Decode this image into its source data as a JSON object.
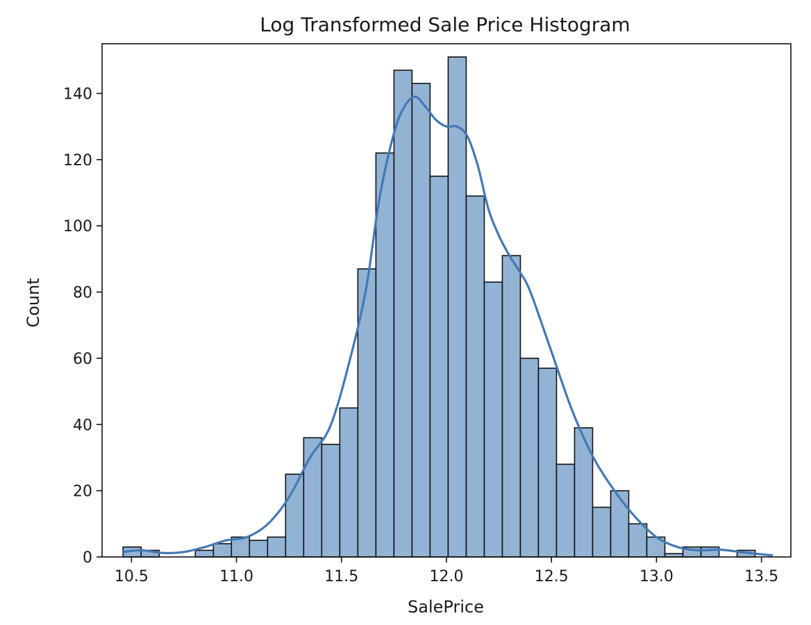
{
  "chart_data": {
    "type": "bar",
    "title": "Log Transformed Sale Price Histogram",
    "xlabel": "SalePrice",
    "ylabel": "Count",
    "xlim": [
      10.36,
      13.64
    ],
    "ylim": [
      0,
      155
    ],
    "xticks": [
      10.5,
      11.0,
      11.5,
      12.0,
      12.5,
      13.0,
      13.5
    ],
    "xtick_labels": [
      "10.5",
      "11.0",
      "11.5",
      "12.0",
      "12.5",
      "13.0",
      "13.5"
    ],
    "yticks": [
      0,
      20,
      40,
      60,
      80,
      100,
      120,
      140
    ],
    "ytick_labels": [
      "0",
      "20",
      "40",
      "60",
      "80",
      "100",
      "120",
      "140"
    ],
    "grid": false,
    "bin_edges": [
      10.46,
      10.546,
      10.632,
      10.718,
      10.804,
      10.89,
      10.976,
      11.062,
      11.148,
      11.234,
      11.32,
      11.406,
      11.492,
      11.578,
      11.664,
      11.75,
      11.836,
      11.922,
      12.008,
      12.094,
      12.18,
      12.266,
      12.352,
      12.438,
      12.524,
      12.61,
      12.696,
      12.782,
      12.868,
      12.954,
      13.04,
      13.126,
      13.212,
      13.298,
      13.384,
      13.47,
      13.556
    ],
    "counts": [
      3,
      2,
      0,
      0,
      2,
      4,
      6,
      5,
      6,
      25,
      36,
      34,
      45,
      87,
      122,
      147,
      143,
      115,
      151,
      109,
      83,
      91,
      60,
      57,
      28,
      39,
      15,
      20,
      10,
      6,
      1,
      3,
      3,
      0,
      2,
      0
    ],
    "kde": {
      "x": [
        10.46,
        10.55,
        10.65,
        10.75,
        10.85,
        10.95,
        11.05,
        11.15,
        11.25,
        11.35,
        11.45,
        11.55,
        11.62,
        11.68,
        11.75,
        11.8,
        11.85,
        11.9,
        11.95,
        12.0,
        12.05,
        12.1,
        12.15,
        12.2,
        12.25,
        12.3,
        12.35,
        12.4,
        12.5,
        12.6,
        12.7,
        12.8,
        12.9,
        13.0,
        13.1,
        13.2,
        13.3,
        13.4,
        13.5,
        13.55
      ],
      "y": [
        1.5,
        2,
        1.2,
        1.5,
        3,
        5,
        6,
        10,
        18,
        30,
        40,
        62,
        82,
        108,
        128,
        136,
        139,
        136,
        132,
        130,
        130,
        127,
        118,
        105,
        97,
        91,
        86,
        80,
        62,
        44,
        30,
        20,
        12,
        6,
        3,
        2,
        2.2,
        1.5,
        0.8,
        0.5
      ]
    }
  }
}
